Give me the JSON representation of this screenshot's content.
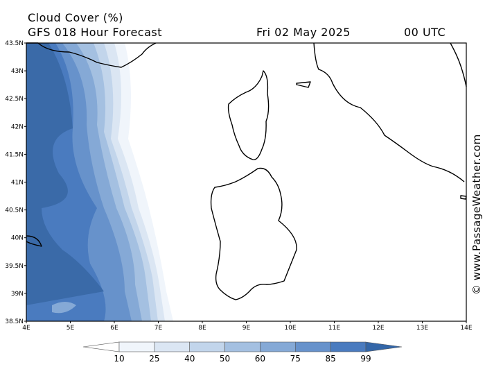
{
  "header": {
    "title": "Cloud Cover (%)",
    "subtitle": "GFS 018 Hour Forecast",
    "date": "Fri 02 May 2025",
    "time": "00 UTC"
  },
  "map": {
    "lat_labels": [
      "43.5N",
      "43N",
      "42.5N",
      "42N",
      "41.5N",
      "41N",
      "40.5N",
      "40N",
      "39.5N",
      "39N",
      "38.5N"
    ],
    "lon_labels": [
      "4E",
      "5E",
      "6E",
      "7E",
      "8E",
      "9E",
      "10E",
      "11E",
      "12E",
      "13E",
      "14E"
    ]
  },
  "colorbar": {
    "ticks": [
      10,
      25,
      40,
      50,
      60,
      75,
      85,
      99
    ]
  },
  "watermark": "© www.PassageWeather.com"
}
